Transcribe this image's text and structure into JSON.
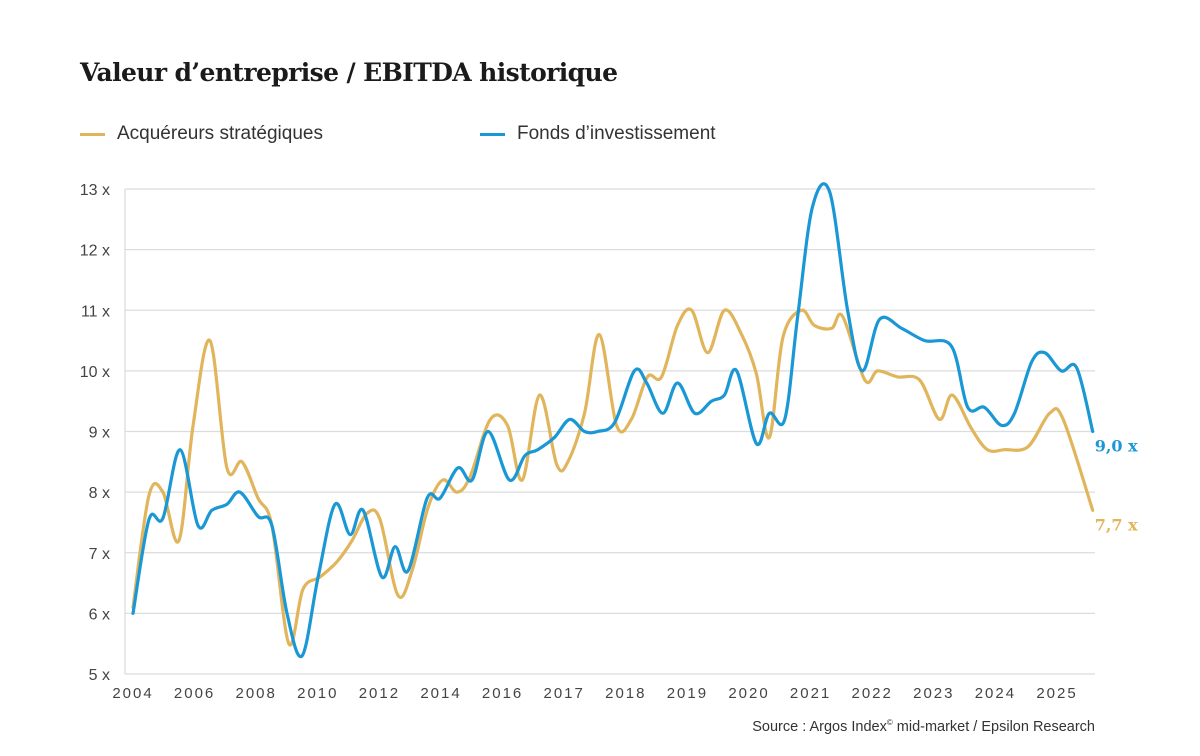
{
  "chart_data": {
    "type": "line",
    "title": "Valeur d’entreprise / EBITDA historique",
    "xlabel": "",
    "ylabel": "",
    "ylim": [
      5,
      13
    ],
    "y_ticks": [
      "5 x",
      "6 x",
      "7 x",
      "8 x",
      "9 x",
      "10 x",
      "11 x",
      "12 x",
      "13 x"
    ],
    "y_tick_values": [
      5,
      6,
      7,
      8,
      9,
      10,
      11,
      12,
      13
    ],
    "x_ticks": [
      "2004",
      "2006",
      "2008",
      "2010",
      "2012",
      "2014",
      "2016",
      "2017",
      "2018",
      "2019",
      "2020",
      "2021",
      "2022",
      "2023",
      "2024",
      "2025"
    ],
    "grid": "horizontal",
    "legend_position": "top-left",
    "series": [
      {
        "name": "Acquéreurs stratégiques",
        "color": "#E1B55C",
        "end_label": "7,7 x",
        "x": [
          2004.0,
          2004.52,
          2004.97,
          2005.49,
          2005.95,
          2006.5,
          2007.05,
          2007.54,
          2008.06,
          2008.51,
          2009.06,
          2009.52,
          2010.07,
          2010.62,
          2011.11,
          2011.6,
          2012.02,
          2012.6,
          2013.06,
          2013.58,
          2014.06,
          2014.52,
          2014.94,
          2015.6,
          2016.08,
          2016.32,
          2016.6,
          2016.88,
          2017.06,
          2017.33,
          2017.57,
          2017.85,
          2018.09,
          2018.35,
          2018.58,
          2018.84,
          2019.07,
          2019.33,
          2019.6,
          2019.88,
          2020.12,
          2020.33,
          2020.55,
          2020.85,
          2021.06,
          2021.34,
          2021.52,
          2021.88,
          2022.09,
          2022.41,
          2022.77,
          2023.09,
          2023.3,
          2023.61,
          2023.87,
          2024.15,
          2024.53,
          2024.88,
          2025.1,
          2025.58
        ],
        "y": [
          6.1,
          7.95,
          8.0,
          7.2,
          9.1,
          10.5,
          8.4,
          8.5,
          7.9,
          7.45,
          5.5,
          6.4,
          6.6,
          6.85,
          7.2,
          7.65,
          7.55,
          6.3,
          6.7,
          7.75,
          8.2,
          8.0,
          8.25,
          9.2,
          9.1,
          8.2,
          9.6,
          8.45,
          8.5,
          9.3,
          10.6,
          9.1,
          9.2,
          9.9,
          9.9,
          10.75,
          11.0,
          10.3,
          11.0,
          10.6,
          9.95,
          8.9,
          10.55,
          11.0,
          10.75,
          10.7,
          10.9,
          9.85,
          10.0,
          9.9,
          9.85,
          9.2,
          9.6,
          9.05,
          8.7,
          8.7,
          8.75,
          9.3,
          9.2,
          7.7
        ]
      },
      {
        "name": "Fonds d’investissement",
        "color": "#1A98D5",
        "end_label": "9,0 x",
        "x": [
          2004.0,
          2004.52,
          2004.97,
          2005.53,
          2006.11,
          2006.56,
          2007.05,
          2007.47,
          2008.06,
          2008.51,
          2009.0,
          2009.49,
          2010.01,
          2010.56,
          2011.05,
          2011.47,
          2012.08,
          2012.51,
          2012.93,
          2013.55,
          2013.97,
          2014.55,
          2015.01,
          2015.53,
          2016.11,
          2016.36,
          2016.57,
          2016.84,
          2017.09,
          2017.33,
          2017.54,
          2017.82,
          2018.14,
          2018.34,
          2018.6,
          2018.84,
          2019.12,
          2019.39,
          2019.6,
          2019.8,
          2020.12,
          2020.33,
          2020.58,
          2020.79,
          2021.03,
          2021.31,
          2021.6,
          2021.84,
          2022.12,
          2022.48,
          2022.85,
          2023.29,
          2023.55,
          2023.82,
          2024.1,
          2024.31,
          2024.59,
          2024.8,
          2025.07,
          2025.32,
          2025.58
        ],
        "y": [
          6.0,
          7.55,
          7.57,
          8.7,
          7.45,
          7.7,
          7.8,
          8.0,
          7.6,
          7.45,
          6.0,
          5.3,
          6.6,
          7.8,
          7.3,
          7.7,
          6.6,
          7.1,
          6.7,
          7.9,
          7.9,
          8.4,
          8.2,
          9.0,
          8.2,
          8.6,
          8.7,
          8.9,
          9.2,
          9.0,
          9.0,
          9.15,
          10.0,
          9.8,
          9.3,
          9.8,
          9.3,
          9.5,
          9.6,
          10.0,
          8.8,
          9.3,
          9.2,
          10.9,
          12.7,
          12.95,
          11.0,
          10.0,
          10.85,
          10.7,
          10.5,
          10.4,
          9.4,
          9.4,
          9.1,
          9.3,
          10.15,
          10.3,
          10.0,
          10.05,
          9.0
        ]
      }
    ],
    "source": "Source : Argos Index",
    "source_sup": "©",
    "source_rest": " mid-market / Epsilon Research"
  }
}
